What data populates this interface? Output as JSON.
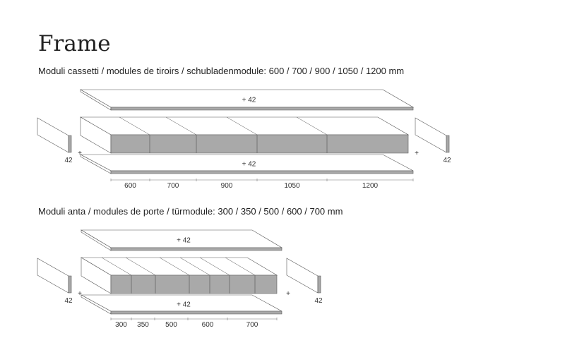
{
  "title": "Frame",
  "sections": [
    {
      "caption": "Moduli cassetti / modules de tiroirs / schubladenmodule: 600 / 700 / 900 / 1050 / 1200 mm",
      "shelf_label": "+ 42",
      "side_label": "42",
      "plus": "+",
      "modules": [
        "600",
        "700",
        "900",
        "1050",
        "1200"
      ]
    },
    {
      "caption": "Moduli anta / modules de porte / türmodule: 300 / 350 / 500 / 600 / 700 mm",
      "shelf_label": "+ 42",
      "side_label": "42",
      "plus": "+",
      "modules": [
        "300",
        "350",
        "500",
        "600",
        "700"
      ]
    }
  ],
  "colors": {
    "panel_front": "#a9a9a9",
    "line": "#555555"
  }
}
